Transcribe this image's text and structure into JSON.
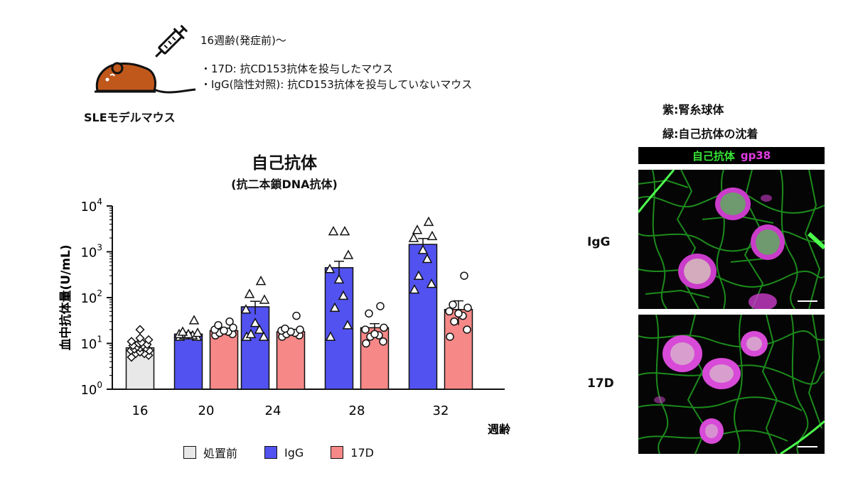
{
  "experiment": {
    "mouse_label": "SLEモデルマウス",
    "age_text": "16週齢(発症前)〜",
    "line1": "・17D: 抗CD153抗体を投与したマウス",
    "line2": "・IgG(陰性対照): 抗CD153抗体を投与していないマウス"
  },
  "chart_data": {
    "type": "bar",
    "title": "自己抗体",
    "subtitle": "(抗二本鎖DNA抗体)",
    "ylabel": "血中抗体量(U/mL)",
    "xlabel": "週齢",
    "yscale": "log",
    "ylim": [
      1,
      10000
    ],
    "y_ticks": [
      {
        "base": "10",
        "exp": "0",
        "value": 1
      },
      {
        "base": "10",
        "exp": "1",
        "value": 10
      },
      {
        "base": "10",
        "exp": "2",
        "value": 100
      },
      {
        "base": "10",
        "exp": "3",
        "value": 1000
      },
      {
        "base": "10",
        "exp": "4",
        "value": 10000
      }
    ],
    "categories": [
      "16",
      "20",
      "24",
      "28",
      "32"
    ],
    "grid": false,
    "legend_position": "bottom",
    "series": [
      {
        "name": "処置前",
        "color": "#e8e8e8",
        "marker": "diamond",
        "values": [
          8,
          null,
          null,
          null,
          null
        ],
        "errors": [
          0.8,
          null,
          null,
          null,
          null
        ],
        "points": [
          [
            5,
            5.5,
            6,
            6,
            6.5,
            7,
            7,
            7.5,
            8,
            8,
            8.5,
            9,
            9,
            9.5,
            10,
            10.5,
            11,
            12,
            13,
            20
          ],
          [],
          [],
          [],
          []
        ]
      },
      {
        "name": "IgG",
        "color": "#5252f0",
        "marker": "triangle",
        "values": [
          null,
          16,
          63,
          450,
          1450
        ],
        "errors": [
          null,
          1.5,
          20,
          170,
          500
        ],
        "points": [
          [],
          [
            14,
            14,
            15,
            15,
            16,
            16,
            17,
            18,
            32
          ],
          [
            14,
            14,
            16,
            20,
            28,
            55,
            90,
            120,
            230
          ],
          [
            14,
            25,
            60,
            110,
            250,
            420,
            850,
            2800,
            2800
          ],
          [
            150,
            200,
            300,
            700,
            1100,
            2000,
            2200,
            3000,
            4500
          ]
        ]
      },
      {
        "name": "17D",
        "color": "#f68888",
        "marker": "circle",
        "values": [
          null,
          19,
          18,
          22,
          55
        ],
        "errors": [
          null,
          2.5,
          1.5,
          5,
          30
        ],
        "points": [
          [],
          [
            15,
            16,
            17,
            18,
            19,
            20,
            22,
            25,
            30
          ],
          [
            14,
            15,
            16,
            17,
            18,
            19,
            20,
            21,
            40
          ],
          [
            10,
            11,
            14,
            15,
            16,
            20,
            22,
            45,
            65
          ],
          [
            14,
            20,
            30,
            40,
            45,
            50,
            60,
            70,
            300
          ]
        ]
      }
    ]
  },
  "microscopy": {
    "legend_line1": "紫:腎糸球体",
    "legend_line2": "緑:自己抗体の沈着",
    "header_green": "自己抗体",
    "header_magenta": "gp38",
    "row_labels": [
      "IgG",
      "17D"
    ],
    "colors": {
      "green": "#36e636",
      "magenta": "#e23ce2",
      "background": "#050505"
    }
  }
}
